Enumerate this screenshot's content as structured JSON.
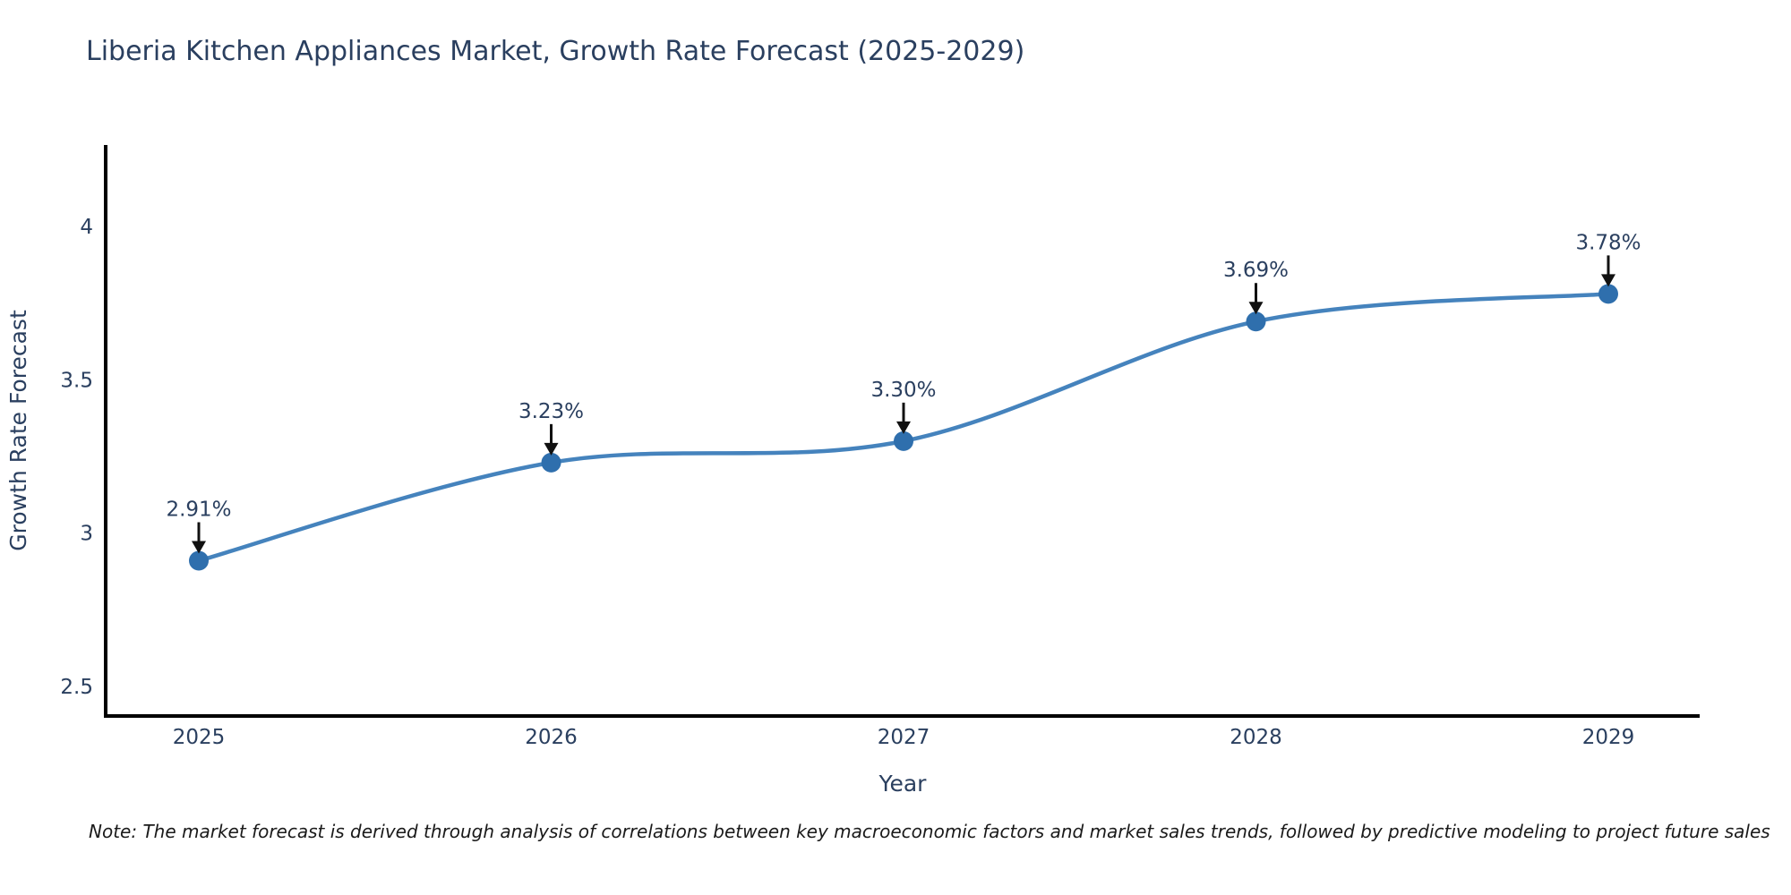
{
  "title": "Liberia Kitchen Appliances Market, Growth Rate Forecast (2025-2029)",
  "note": "Note: The market forecast is derived through analysis of correlations between key macroeconomic factors and market sales trends, followed by predictive modeling to project future sales",
  "chart_data": {
    "type": "line",
    "title": "Liberia Kitchen Appliances Market, Growth Rate Forecast (2025-2029)",
    "x": [
      "2025",
      "2026",
      "2027",
      "2028",
      "2029"
    ],
    "values": [
      2.91,
      3.23,
      3.3,
      3.69,
      3.78
    ],
    "point_labels": [
      "2.91%",
      "3.23%",
      "3.30%",
      "3.69%",
      "3.78%"
    ],
    "xlabel": "Year",
    "ylabel": "Growth Rate Forecast",
    "y_ticks": [
      2.5,
      3,
      3.5,
      4
    ],
    "y_tick_labels": [
      "2.5",
      "3",
      "3.5",
      "4"
    ],
    "ylim": [
      2.4,
      4.27
    ],
    "line_shape": "spline",
    "grid": false,
    "legend": "none",
    "line_color": "#4583bd",
    "marker_color": "#2f6fad",
    "arrow_color": "#111111",
    "axis_color": "#000000",
    "text_color": "#2a3f5f"
  }
}
